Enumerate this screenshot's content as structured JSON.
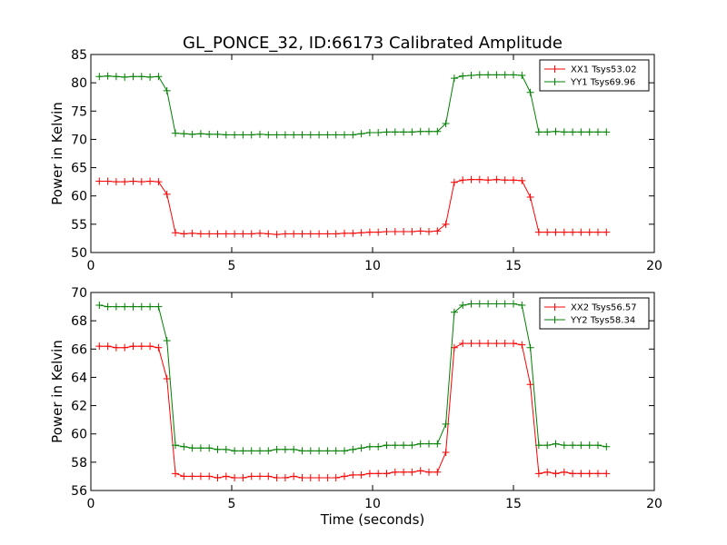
{
  "figure_title": "GL_PONCE_32, ID:66173 Calibrated Amplitude",
  "chart_data": [
    {
      "type": "line",
      "title": "GL_PONCE_32, ID:66173 Calibrated Amplitude",
      "xlabel": "",
      "ylabel": "Power in Kelvin",
      "xlim": [
        0,
        20
      ],
      "ylim": [
        50,
        85
      ],
      "xticks": [
        0,
        5,
        10,
        15,
        20
      ],
      "yticks": [
        50,
        55,
        60,
        65,
        70,
        75,
        80,
        85
      ],
      "grid": false,
      "legend_position": "top-right",
      "x": [
        0.3,
        0.6,
        0.9,
        1.2,
        1.5,
        1.8,
        2.1,
        2.4,
        2.7,
        3.0,
        3.3,
        3.6,
        3.9,
        4.2,
        4.5,
        4.8,
        5.1,
        5.4,
        5.7,
        6.0,
        6.3,
        6.6,
        6.9,
        7.2,
        7.5,
        7.8,
        8.1,
        8.4,
        8.7,
        9.0,
        9.3,
        9.6,
        9.9,
        10.2,
        10.5,
        10.8,
        11.1,
        11.4,
        11.7,
        12.0,
        12.3,
        12.6,
        12.9,
        13.2,
        13.5,
        13.8,
        14.1,
        14.4,
        14.7,
        15.0,
        15.3,
        15.6,
        15.9,
        16.2,
        16.5,
        16.8,
        17.1,
        17.4,
        17.7,
        18.0,
        18.3
      ],
      "series": [
        {
          "name": "XX1 Tsys53.02",
          "color": "#ff0000",
          "values": [
            62.6,
            62.6,
            62.5,
            62.5,
            62.6,
            62.5,
            62.6,
            62.5,
            60.3,
            53.5,
            53.3,
            53.4,
            53.3,
            53.3,
            53.3,
            53.3,
            53.3,
            53.3,
            53.3,
            53.4,
            53.3,
            53.2,
            53.3,
            53.3,
            53.3,
            53.3,
            53.3,
            53.3,
            53.3,
            53.4,
            53.4,
            53.5,
            53.6,
            53.6,
            53.7,
            53.7,
            53.7,
            53.7,
            53.8,
            53.7,
            53.8,
            55.0,
            62.4,
            62.8,
            62.9,
            62.9,
            62.8,
            62.9,
            62.8,
            62.8,
            62.7,
            59.8,
            53.6,
            53.6,
            53.6,
            53.6,
            53.6,
            53.6,
            53.6,
            53.6,
            53.6
          ]
        },
        {
          "name": "YY1 Tsys69.96",
          "color": "#008000",
          "values": [
            81.1,
            81.2,
            81.1,
            81.0,
            81.1,
            81.1,
            81.0,
            81.1,
            78.6,
            71.1,
            71.0,
            70.9,
            71.0,
            70.9,
            70.9,
            70.8,
            70.8,
            70.8,
            70.8,
            70.9,
            70.8,
            70.8,
            70.8,
            70.8,
            70.8,
            70.8,
            70.8,
            70.8,
            70.8,
            70.8,
            70.8,
            71.0,
            71.2,
            71.2,
            71.3,
            71.3,
            71.3,
            71.3,
            71.4,
            71.4,
            71.4,
            72.8,
            80.8,
            81.2,
            81.3,
            81.4,
            81.4,
            81.4,
            81.4,
            81.4,
            81.3,
            78.3,
            71.3,
            71.3,
            71.4,
            71.3,
            71.3,
            71.3,
            71.3,
            71.3,
            71.3
          ]
        }
      ]
    },
    {
      "type": "line",
      "title": "",
      "xlabel": "Time (seconds)",
      "ylabel": "Power in Kelvin",
      "xlim": [
        0,
        20
      ],
      "ylim": [
        56,
        70
      ],
      "xticks": [
        0,
        5,
        10,
        15,
        20
      ],
      "yticks": [
        56,
        58,
        60,
        62,
        64,
        66,
        68,
        70
      ],
      "grid": false,
      "legend_position": "top-right",
      "x": [
        0.3,
        0.6,
        0.9,
        1.2,
        1.5,
        1.8,
        2.1,
        2.4,
        2.7,
        3.0,
        3.3,
        3.6,
        3.9,
        4.2,
        4.5,
        4.8,
        5.1,
        5.4,
        5.7,
        6.0,
        6.3,
        6.6,
        6.9,
        7.2,
        7.5,
        7.8,
        8.1,
        8.4,
        8.7,
        9.0,
        9.3,
        9.6,
        9.9,
        10.2,
        10.5,
        10.8,
        11.1,
        11.4,
        11.7,
        12.0,
        12.3,
        12.6,
        12.9,
        13.2,
        13.5,
        13.8,
        14.1,
        14.4,
        14.7,
        15.0,
        15.3,
        15.6,
        15.9,
        16.2,
        16.5,
        16.8,
        17.1,
        17.4,
        17.7,
        18.0,
        18.3
      ],
      "series": [
        {
          "name": "XX2 Tsys56.57",
          "color": "#ff0000",
          "values": [
            66.2,
            66.2,
            66.1,
            66.1,
            66.2,
            66.2,
            66.2,
            66.1,
            63.9,
            57.2,
            57.0,
            57.0,
            57.0,
            57.0,
            56.9,
            57.0,
            56.9,
            56.9,
            57.0,
            57.0,
            57.0,
            56.9,
            56.9,
            57.0,
            56.9,
            56.9,
            56.9,
            56.9,
            56.9,
            57.0,
            57.1,
            57.1,
            57.2,
            57.2,
            57.2,
            57.3,
            57.3,
            57.3,
            57.4,
            57.3,
            57.3,
            58.7,
            66.1,
            66.4,
            66.4,
            66.4,
            66.4,
            66.4,
            66.4,
            66.4,
            66.3,
            63.5,
            57.2,
            57.3,
            57.2,
            57.3,
            57.2,
            57.2,
            57.2,
            57.2,
            57.2
          ]
        },
        {
          "name": "YY2 Tsys58.34",
          "color": "#008000",
          "values": [
            69.1,
            69.0,
            69.0,
            69.0,
            69.0,
            69.0,
            69.0,
            69.0,
            66.6,
            59.2,
            59.1,
            59.0,
            59.0,
            59.0,
            58.9,
            58.9,
            58.8,
            58.8,
            58.8,
            58.8,
            58.8,
            58.9,
            58.9,
            58.9,
            58.8,
            58.8,
            58.8,
            58.8,
            58.8,
            58.8,
            58.9,
            59.0,
            59.1,
            59.1,
            59.2,
            59.2,
            59.2,
            59.2,
            59.3,
            59.3,
            59.3,
            60.7,
            68.6,
            69.1,
            69.2,
            69.2,
            69.2,
            69.2,
            69.2,
            69.2,
            69.1,
            66.1,
            59.2,
            59.2,
            59.3,
            59.2,
            59.2,
            59.2,
            59.2,
            59.2,
            59.1
          ]
        }
      ]
    }
  ]
}
